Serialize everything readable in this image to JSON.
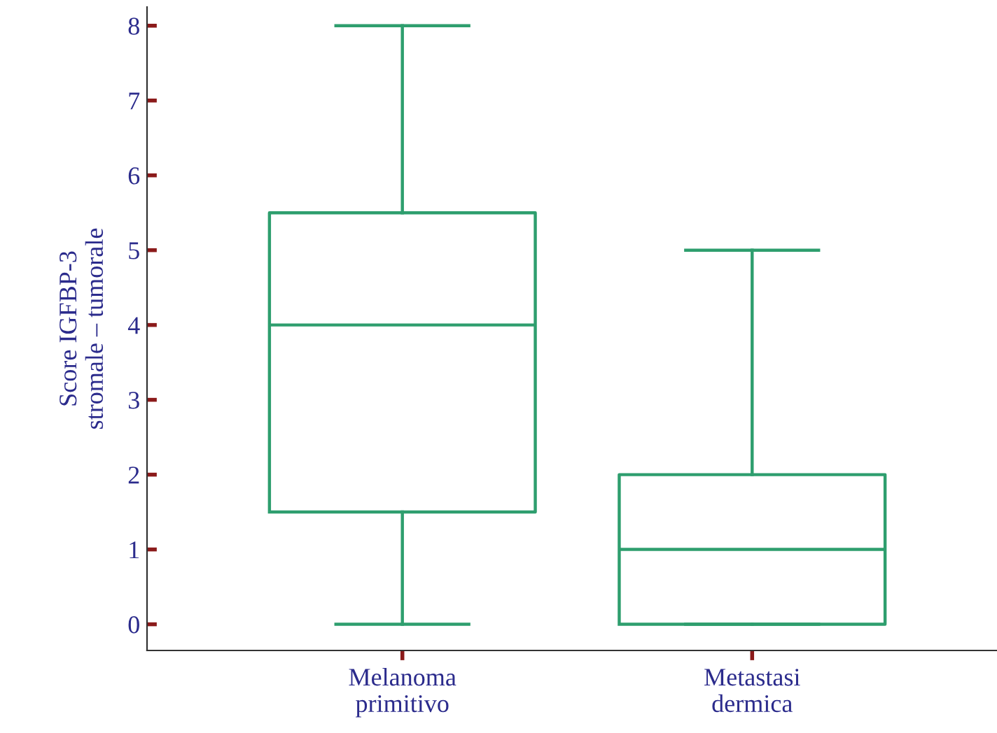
{
  "chart_data": {
    "type": "box",
    "ylabel": "Score IGFBP-3\nstromale – tumorale",
    "categories": [
      "Melanoma\nprimitivo",
      "Metastasi\ndermica"
    ],
    "boxes": [
      {
        "low": 0,
        "q1": 1.5,
        "median": 4,
        "q3": 5.5,
        "high": 8
      },
      {
        "low": 0,
        "q1": 0,
        "median": 1,
        "q3": 2,
        "high": 5
      }
    ],
    "color": "#2e9e6e",
    "ylim": [
      -0.35,
      8.25
    ],
    "yticks": [
      0,
      1,
      2,
      3,
      4,
      5,
      6,
      7,
      8
    ],
    "grid": false
  }
}
